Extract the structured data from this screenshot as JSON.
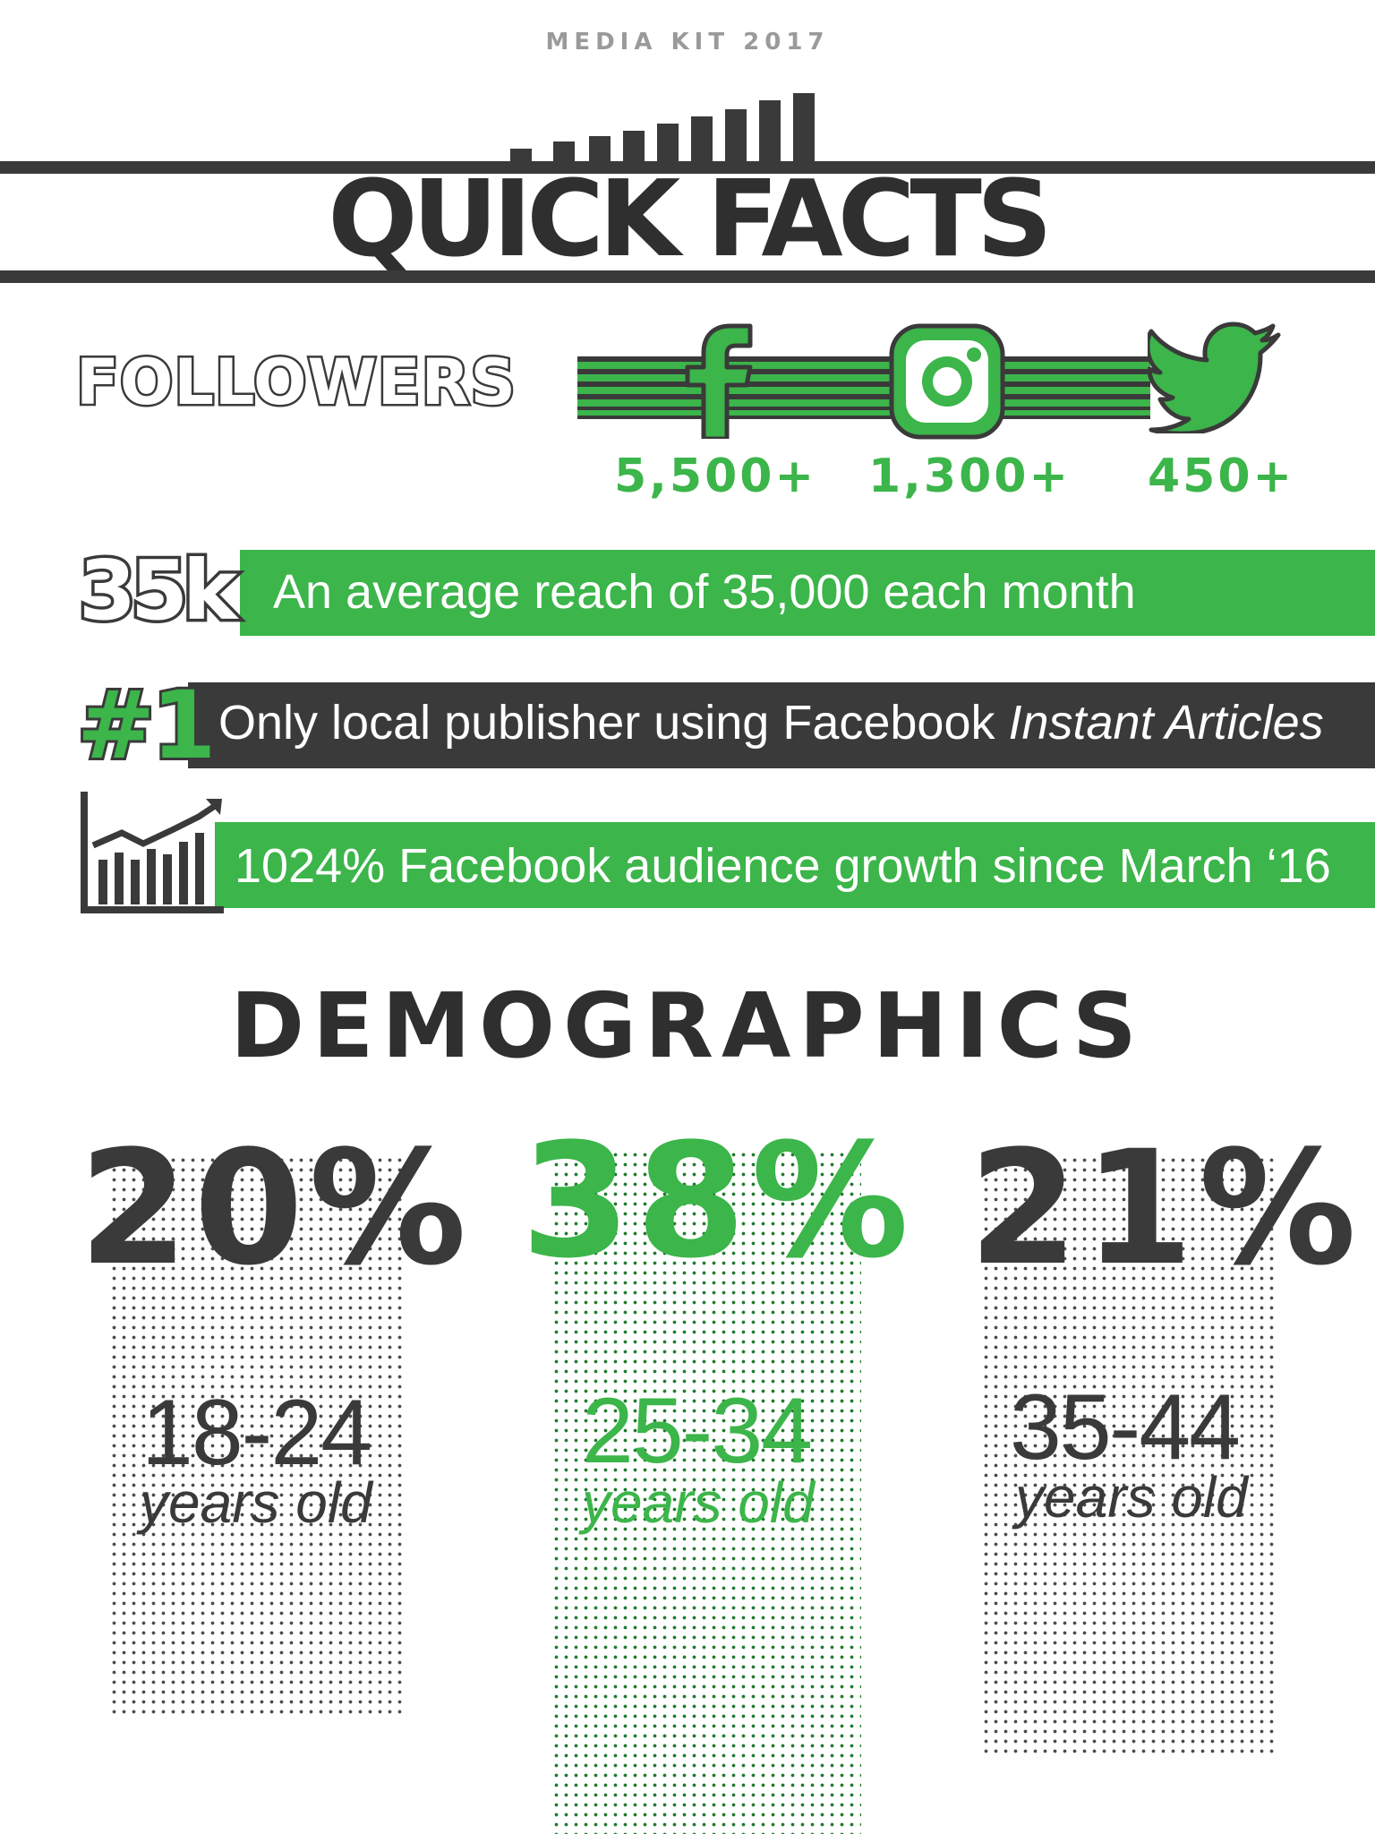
{
  "header": {
    "kicker": "MEDIA KIT 2017",
    "title": "QUICK FACTS"
  },
  "followers": {
    "label": "FOLLOWERS",
    "networks": [
      {
        "icon": "facebook-icon",
        "count": "5,500+"
      },
      {
        "icon": "instagram-icon",
        "count": "1,300+"
      },
      {
        "icon": "twitter-icon",
        "count": "450+"
      }
    ]
  },
  "facts": [
    {
      "badge": "35k",
      "text": "An average reach of 35,000 each month",
      "text_italic": ""
    },
    {
      "badge": "#1",
      "text": "Only local publisher using Facebook ",
      "text_italic": "Instant Articles"
    },
    {
      "badge": "",
      "text": "1024% Facebook audience growth since March ‘16",
      "text_italic": ""
    }
  ],
  "demographics": {
    "title": "DEMOGRAPHICS",
    "groups": [
      {
        "percent": "20%",
        "age": "18-24",
        "unit": "years old",
        "highlight": false
      },
      {
        "percent": "38%",
        "age": "25-34",
        "unit": "years old",
        "highlight": true
      },
      {
        "percent": "21%",
        "age": "35-44",
        "unit": "years old",
        "highlight": false
      }
    ]
  },
  "colors": {
    "accent": "#3cb54a",
    "dark": "#3a3a3a",
    "muted": "#9a9a9a"
  }
}
